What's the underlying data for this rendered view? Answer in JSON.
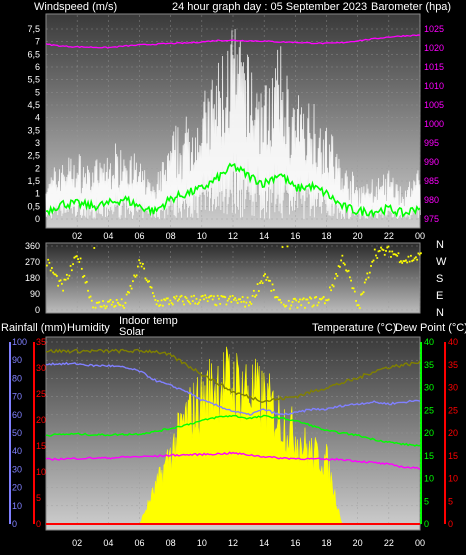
{
  "header": {
    "windspeed": "Windspeed (m/s)",
    "graph_title": "24 hour graph day : 05 September 2023",
    "barometer": "Barometer (hpa)"
  },
  "directions": [
    "N",
    "W",
    "S",
    "E",
    "N"
  ],
  "bottom_header": {
    "rainfall": "Rainfall (mm)",
    "humidity": "Humidity",
    "indoor_temp": "Indoor temp",
    "solar": "Solar",
    "temperature": "Temperature (°C)",
    "dew_point": "Dew Point (°C)"
  },
  "colors": {
    "wind_gust": "#ffffff",
    "wind_avg": "#00ff00",
    "barometer": "#ff00ff",
    "wind_dir": "#ffff00",
    "rain": "#ff0000",
    "humidity": "#8080ff",
    "indoor_temp": "#808000",
    "solar": "#ffff00",
    "temperature": "#00ff00",
    "dew_point": "#ff00ff",
    "temp_axis": "#00ff00",
    "dew_axis": "#ff0000"
  },
  "chart_data": [
    {
      "type": "line",
      "x_ticks": [
        "02",
        "04",
        "06",
        "08",
        "10",
        "12",
        "14",
        "16",
        "18",
        "20",
        "22",
        "00"
      ],
      "y_left_ticks": [
        "0",
        "0,5",
        "1",
        "1,5",
        "2",
        "2,5",
        "3",
        "3,5",
        "4",
        "4,5",
        "5",
        "5,5",
        "6",
        "6,5",
        "7",
        "7,5"
      ],
      "y_right_ticks": [
        "975",
        "980",
        "985",
        "990",
        "995",
        "1000",
        "1005",
        "1010",
        "1015",
        "1020",
        "1025"
      ],
      "ylim_left": [
        0,
        7.5
      ],
      "ylim_right": [
        975,
        1025
      ],
      "x": [
        0,
        1,
        2,
        3,
        4,
        5,
        6,
        7,
        8,
        9,
        10,
        11,
        12,
        13,
        14,
        15,
        16,
        17,
        18,
        19,
        20,
        21,
        22,
        23,
        24
      ],
      "series": [
        {
          "name": "Windspeed (m/s)",
          "values": [
            0.3,
            0.6,
            0.6,
            0.5,
            0.6,
            0.8,
            0.5,
            0.3,
            0.8,
            1.0,
            1.2,
            1.6,
            2.1,
            1.7,
            1.4,
            1.8,
            1.2,
            1.3,
            1.0,
            0.5,
            0.3,
            0.3,
            0.4,
            0.2,
            0.5
          ]
        },
        {
          "name": "Barometer (hpa)",
          "values": [
            1021,
            1020.5,
            1020.3,
            1020.2,
            1020.1,
            1020.5,
            1020.8,
            1021,
            1021.2,
            1021.3,
            1021.6,
            1022,
            1022,
            1021.9,
            1021.8,
            1021.6,
            1021.5,
            1021.3,
            1021.2,
            1021.4,
            1021.9,
            1022.4,
            1022.9,
            1023.2,
            1023.4
          ]
        }
      ]
    },
    {
      "type": "scatter",
      "x_ticks": [
        "02",
        "04",
        "06",
        "08",
        "10",
        "12",
        "14",
        "16",
        "18",
        "20",
        "22",
        "00"
      ],
      "y_left_ticks": [
        "0",
        "90",
        "180",
        "270",
        "360"
      ],
      "ylim_left": [
        0,
        360
      ],
      "x": [
        0,
        1,
        2,
        3,
        4,
        5,
        6,
        7,
        8,
        9,
        10,
        11,
        12,
        13,
        14,
        15,
        16,
        17,
        18,
        19,
        20,
        21,
        22,
        23,
        24
      ],
      "series": [
        {
          "name": "Wind direction",
          "values": [
            270,
            120,
            310,
            15,
            40,
            30,
            270,
            40,
            50,
            55,
            60,
            50,
            55,
            40,
            200,
            20,
            35,
            45,
            60,
            300,
            10,
            320,
            330,
            280,
            300
          ]
        }
      ]
    },
    {
      "type": "line",
      "x_ticks": [
        "02",
        "04",
        "06",
        "08",
        "10",
        "12",
        "14",
        "16",
        "18",
        "20",
        "22",
        "00"
      ],
      "y_left_ticks": [
        "0",
        "10",
        "20",
        "30",
        "40",
        "50",
        "60",
        "70",
        "80",
        "90",
        "100"
      ],
      "y_left2_ticks": [
        "0",
        "5",
        "10",
        "15",
        "20",
        "25",
        "30",
        "35"
      ],
      "y_right_ticks": [
        "0",
        "5",
        "10",
        "15",
        "20",
        "25",
        "30",
        "35",
        "40"
      ],
      "y_right2_ticks": [
        "0",
        "5",
        "10",
        "15",
        "20",
        "25",
        "30",
        "35",
        "40"
      ],
      "ylim_left": [
        0,
        100
      ],
      "ylim_left2": [
        0,
        35
      ],
      "ylim_right": [
        0,
        40
      ],
      "x": [
        0,
        1,
        2,
        3,
        4,
        5,
        6,
        7,
        8,
        9,
        10,
        11,
        12,
        13,
        14,
        15,
        16,
        17,
        18,
        19,
        20,
        21,
        22,
        23,
        24
      ],
      "series": [
        {
          "name": "Rainfall (mm)",
          "values": [
            0,
            0,
            0,
            0,
            0,
            0,
            0,
            0,
            0,
            0,
            0,
            0,
            0,
            0,
            0,
            0,
            0,
            0,
            0,
            0,
            0,
            0,
            0,
            0,
            0
          ]
        },
        {
          "name": "Humidity",
          "values": [
            88,
            88,
            88,
            87,
            87,
            86,
            84,
            79,
            76,
            73,
            68,
            65,
            62,
            60,
            63,
            60,
            61,
            63,
            63,
            65,
            66,
            67,
            66,
            67,
            68
          ]
        },
        {
          "name": "Indoor temp",
          "values": [
            38,
            38,
            38,
            38,
            38,
            38,
            38,
            38,
            37,
            35,
            33,
            31,
            29,
            28,
            27,
            27.5,
            28,
            29,
            30,
            31,
            32,
            33.5,
            34.5,
            35,
            35.5
          ]
        },
        {
          "name": "Solar",
          "values": [
            0,
            0,
            0,
            0,
            0,
            0,
            0,
            10,
            20,
            30,
            35,
            40,
            40,
            38,
            35,
            30,
            25,
            20,
            18,
            0,
            0,
            0,
            0,
            0,
            0
          ]
        },
        {
          "name": "Temperature (°C)",
          "values": [
            19.5,
            19.7,
            19.8,
            19.6,
            19.6,
            19.7,
            19.8,
            20.3,
            21,
            21.8,
            22.7,
            23.5,
            23.8,
            23.2,
            23.7,
            23.3,
            22.7,
            21.7,
            20.5,
            20,
            19.5,
            18.6,
            18,
            17.5,
            17.2
          ]
        },
        {
          "name": "Dew Point (°C)",
          "values": [
            14.2,
            14.3,
            14.4,
            14.5,
            14.5,
            14.7,
            14.8,
            14.9,
            15.1,
            15.2,
            15.3,
            15.4,
            15.6,
            15.2,
            14.8,
            14.5,
            14.4,
            14.3,
            14.2,
            14.2,
            13.8,
            13.5,
            13.1,
            12.5,
            12.2
          ]
        }
      ]
    }
  ]
}
